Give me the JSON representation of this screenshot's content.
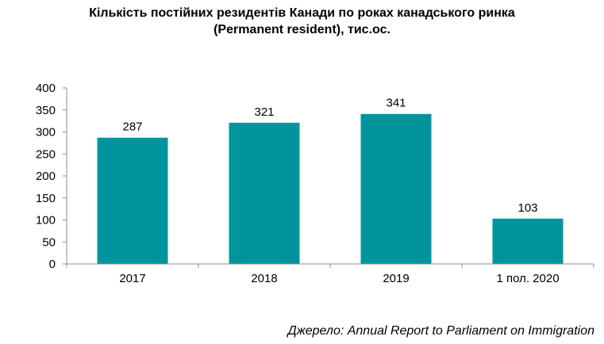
{
  "chart_data": {
    "type": "bar",
    "title_lines": [
      "Кількість постійних резидентів Канади по роках канадського ринка",
      "(Permanent resident), тис.ос."
    ],
    "categories": [
      "2017",
      "2018",
      "2019",
      "1 пол. 2020"
    ],
    "values": [
      287,
      321,
      341,
      103
    ],
    "data_labels": [
      "287",
      "321",
      "341",
      "103"
    ],
    "ylim": [
      0,
      400
    ],
    "yticks": [
      0,
      50,
      100,
      150,
      200,
      250,
      300,
      350,
      400
    ],
    "ytick_labels": [
      "0",
      "50",
      "100",
      "150",
      "200",
      "250",
      "300",
      "350",
      "400"
    ],
    "xlabel": "",
    "ylabel": "",
    "grid": false,
    "legend": "none",
    "bar_color": "#00959C",
    "axis_color": "#8C8C8C"
  },
  "source": "Джерело: Annual Report to Parliament on Immigration"
}
